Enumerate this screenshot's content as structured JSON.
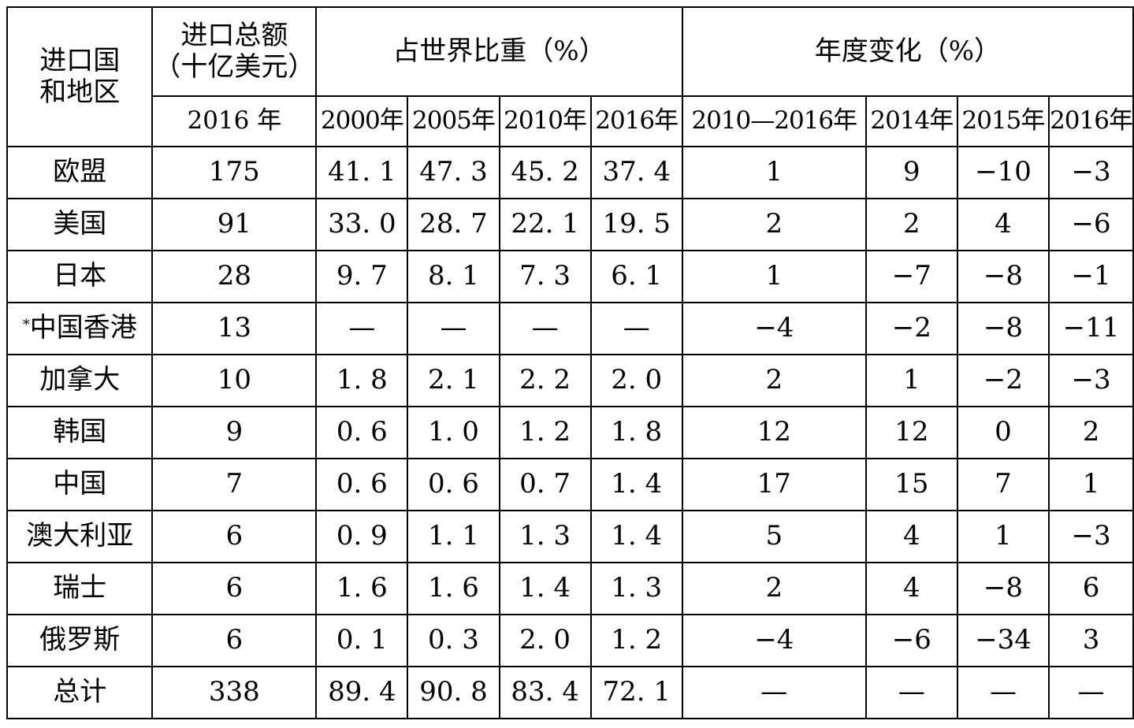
{
  "header": {
    "region": "进口国\n和地区",
    "region_line1": "进口国",
    "region_line2": "和地区",
    "total_line1": "进口总额",
    "total_line2": "（十亿美元）",
    "share": "占世界比重（%）",
    "change": "年度变化（%）",
    "total_year": "2016 年",
    "share_years": [
      "2000年",
      "2005年",
      "2010年",
      "2016年"
    ],
    "change_years": [
      "2010—2016年",
      "2014年",
      "2015年",
      "2016年"
    ]
  },
  "rows": [
    {
      "region": "欧盟",
      "star": "",
      "total": "175",
      "share": [
        "41. 1",
        "47. 3",
        "45. 2",
        "37. 4"
      ],
      "change": [
        "1",
        "9",
        "−10",
        "−3"
      ]
    },
    {
      "region": "美国",
      "star": "",
      "total": "91",
      "share": [
        "33. 0",
        "28. 7",
        "22. 1",
        "19. 5"
      ],
      "change": [
        "2",
        "2",
        "4",
        "−6"
      ]
    },
    {
      "region": "日本",
      "star": "",
      "total": "28",
      "share": [
        "9. 7",
        "8. 1",
        "7. 3",
        "6. 1"
      ],
      "change": [
        "1",
        "−7",
        "−8",
        "−1"
      ]
    },
    {
      "region": "中国香港",
      "star": "*",
      "total": "13",
      "share": [
        "—",
        "—",
        "—",
        "—"
      ],
      "change": [
        "−4",
        "−2",
        "−8",
        "−11"
      ]
    },
    {
      "region": "加拿大",
      "star": "",
      "total": "10",
      "share": [
        "1. 8",
        "2. 1",
        "2. 2",
        "2. 0"
      ],
      "change": [
        "2",
        "1",
        "−2",
        "−3"
      ]
    },
    {
      "region": "韩国",
      "star": "",
      "total": "9",
      "share": [
        "0. 6",
        "1. 0",
        "1. 2",
        "1. 8"
      ],
      "change": [
        "12",
        "12",
        "0",
        "2"
      ]
    },
    {
      "region": "中国",
      "star": "",
      "total": "7",
      "share": [
        "0. 6",
        "0. 6",
        "0. 7",
        "1. 4"
      ],
      "change": [
        "17",
        "15",
        "7",
        "1"
      ]
    },
    {
      "region": "澳大利亚",
      "star": "",
      "total": "6",
      "share": [
        "0. 9",
        "1. 1",
        "1. 3",
        "1. 4"
      ],
      "change": [
        "5",
        "4",
        "1",
        "−3"
      ]
    },
    {
      "region": "瑞士",
      "star": "",
      "total": "6",
      "share": [
        "1. 6",
        "1. 6",
        "1. 4",
        "1. 3"
      ],
      "change": [
        "2",
        "4",
        "−8",
        "6"
      ]
    },
    {
      "region": "俄罗斯",
      "star": "",
      "total": "6",
      "share": [
        "0. 1",
        "0. 3",
        "2. 0",
        "1. 2"
      ],
      "change": [
        "−4",
        "−6",
        "−34",
        "3"
      ]
    },
    {
      "region": "总计",
      "star": "",
      "total": "338",
      "share": [
        "89. 4",
        "90. 8",
        "83. 4",
        "72. 1"
      ],
      "change": [
        "—",
        "—",
        "—",
        "—"
      ]
    }
  ]
}
